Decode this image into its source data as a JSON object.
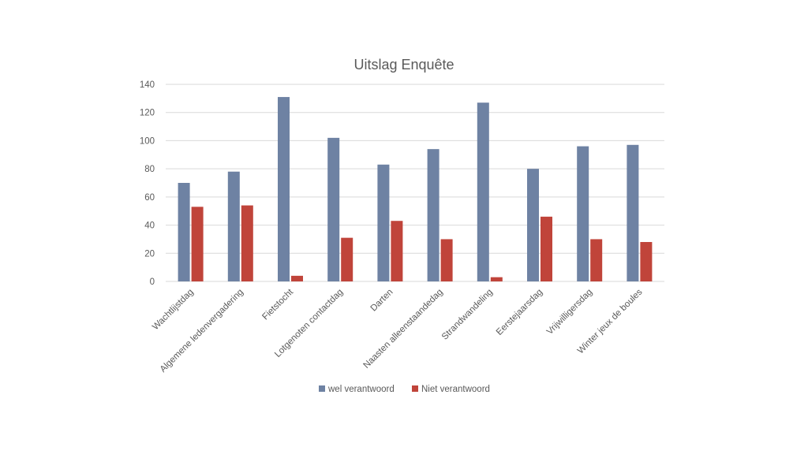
{
  "chart_data": {
    "type": "bar",
    "title": "Uitslag Enquête",
    "xlabel": "",
    "ylabel": "",
    "ylim": [
      0,
      140
    ],
    "yticks": [
      0,
      20,
      40,
      60,
      80,
      100,
      120,
      140
    ],
    "grid": true,
    "legend_position": "bottom",
    "categories": [
      "Wachtlijstdag",
      "Algemene ledenvergadering",
      "Fietstocht",
      "Lotgenoten contactdag",
      "Darten",
      "Naasten alleenstaandedag",
      "Strandwandeling",
      "Eerstejaarsdag",
      "Vrijwilligersdag",
      "Winter jeux de boules"
    ],
    "series": [
      {
        "name": "wel verantwoord",
        "color": "#6e82a3",
        "values": [
          70,
          78,
          131,
          102,
          83,
          94,
          127,
          80,
          96,
          97
        ]
      },
      {
        "name": "Niet verantwoord",
        "color": "#c0443a",
        "values": [
          53,
          54,
          4,
          31,
          43,
          30,
          3,
          46,
          30,
          28
        ]
      }
    ]
  }
}
